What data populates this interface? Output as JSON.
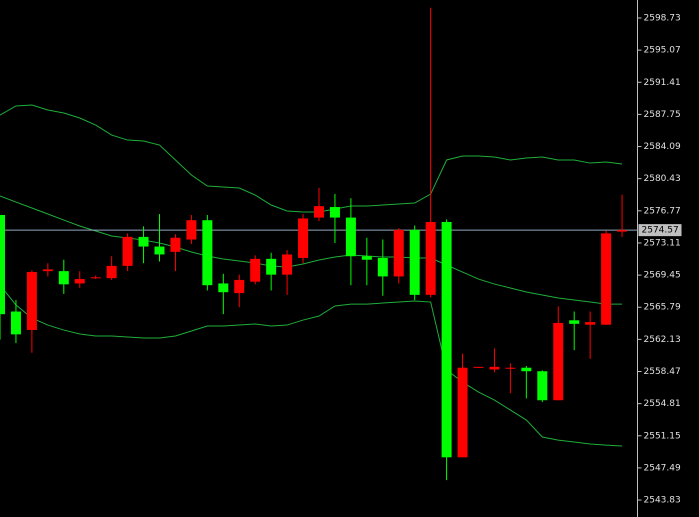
{
  "chart_data": {
    "type": "candlestick",
    "up_color": "#ff0000",
    "down_color": "#00ff00",
    "ylim": [
      2541.9,
      2600.78
    ],
    "yticks": [
      2598.73,
      2595.07,
      2591.41,
      2587.75,
      2584.09,
      2580.43,
      2576.77,
      2573.11,
      2569.45,
      2565.79,
      2562.13,
      2558.47,
      2554.81,
      2551.15,
      2547.49,
      2543.83
    ],
    "current_price": 2574.57,
    "current_price_color": "#8fa8c0",
    "open": [
      2576.3,
      2565.3,
      2563.2,
      2569.9,
      2569.9,
      2568.5,
      2569.1,
      2569.1,
      2570.5,
      2573.8,
      2572.7,
      2572.1,
      2573.5,
      2575.7,
      2568.5,
      2567.4,
      2568.7,
      2571.3,
      2569.5,
      2571.4,
      2576.0,
      2577.2,
      2576.0,
      2571.6,
      2571.4,
      2569.3,
      2574.6,
      2567.2,
      2575.5,
      2548.7,
      2558.9,
      2558.7,
      2558.9,
      2558.9,
      2558.5,
      2555.2,
      2564.3,
      2563.8,
      2563.8,
      2574.4
    ],
    "high": [
      2576.3,
      2566.6,
      2570.0,
      2570.8,
      2571.2,
      2569.9,
      2569.4,
      2571.6,
      2574.2,
      2575.0,
      2576.4,
      2574.1,
      2576.3,
      2576.3,
      2569.6,
      2569.5,
      2571.7,
      2572.0,
      2572.3,
      2576.4,
      2579.4,
      2578.7,
      2578.2,
      2573.7,
      2573.5,
      2574.8,
      2575.1,
      2599.9,
      2575.8,
      2560.5,
      2559.0,
      2561.1,
      2559.4,
      2559.1,
      2558.6,
      2565.9,
      2565.3,
      2565.3,
      2574.5,
      2578.6
    ],
    "low": [
      2562.1,
      2561.7,
      2560.6,
      2569.3,
      2567.3,
      2568.0,
      2569.0,
      2568.9,
      2569.9,
      2570.8,
      2571.0,
      2569.9,
      2573.0,
      2567.7,
      2565.0,
      2565.8,
      2568.4,
      2567.7,
      2567.2,
      2570.8,
      2575.6,
      2573.1,
      2568.3,
      2568.3,
      2567.1,
      2568.5,
      2566.6,
      2566.9,
      2546.1,
      2548.7,
      2558.9,
      2558.4,
      2556.0,
      2555.4,
      2555.0,
      2555.2,
      2560.9,
      2559.9,
      2563.8,
      2573.8
    ],
    "close": [
      2565.0,
      2562.7,
      2569.8,
      2570.1,
      2568.4,
      2569.0,
      2569.2,
      2570.5,
      2573.8,
      2572.7,
      2571.8,
      2573.7,
      2575.7,
      2568.3,
      2567.5,
      2568.9,
      2571.3,
      2569.5,
      2571.8,
      2575.9,
      2577.3,
      2576.0,
      2571.6,
      2571.2,
      2569.3,
      2574.6,
      2567.2,
      2575.5,
      2548.7,
      2558.9,
      2559.0,
      2559.0,
      2558.9,
      2558.5,
      2555.2,
      2564.0,
      2563.9,
      2564.1,
      2574.2,
      2574.57
    ],
    "bands": [
      {
        "color": "#1fae3a",
        "values": [
          2587.68,
          2588.71,
          2588.82,
          2588.25,
          2587.91,
          2587.34,
          2586.54,
          2585.4,
          2584.83,
          2584.72,
          2584.26,
          2582.56,
          2580.85,
          2579.59,
          2579.48,
          2579.37,
          2578.57,
          2577.43,
          2576.75,
          2576.63,
          2576.63,
          2576.98,
          2577.32,
          2577.32,
          2577.43,
          2577.54,
          2577.66,
          2578.68,
          2582.56,
          2583.01,
          2583.01,
          2582.9,
          2582.56,
          2582.78,
          2582.9,
          2582.56,
          2582.56,
          2582.21,
          2582.33,
          2582.1
        ]
      },
      {
        "color": "#1fae3a",
        "values": [
          2578.46,
          2577.77,
          2577.09,
          2576.41,
          2575.72,
          2575.04,
          2574.47,
          2573.9,
          2573.67,
          2573.44,
          2573.1,
          2572.65,
          2572.08,
          2571.62,
          2571.28,
          2571.05,
          2570.82,
          2570.48,
          2570.37,
          2570.71,
          2571.17,
          2571.51,
          2571.74,
          2571.62,
          2571.51,
          2571.51,
          2571.39,
          2571.39,
          2570.6,
          2569.8,
          2569.0,
          2568.43,
          2567.98,
          2567.52,
          2567.18,
          2566.84,
          2566.61,
          2566.38,
          2566.15,
          2566.15
        ]
      },
      {
        "color": "#1fae3a",
        "values": [
          2568.32,
          2566.04,
          2564.56,
          2563.76,
          2563.19,
          2562.74,
          2562.51,
          2562.51,
          2562.4,
          2562.28,
          2562.28,
          2562.51,
          2563.08,
          2563.65,
          2563.65,
          2563.76,
          2563.88,
          2563.65,
          2563.76,
          2564.33,
          2564.79,
          2565.93,
          2566.15,
          2566.15,
          2566.27,
          2566.38,
          2566.5,
          2566.38,
          2558.64,
          2557.27,
          2556.13,
          2555.22,
          2554.08,
          2552.94,
          2551.01,
          2550.66,
          2550.44,
          2550.21,
          2550.09,
          2549.98
        ]
      }
    ]
  }
}
